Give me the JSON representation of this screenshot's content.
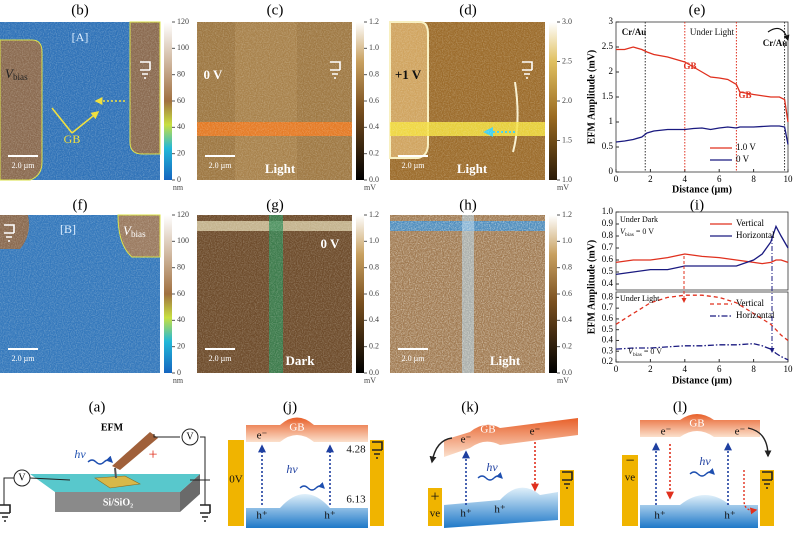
{
  "panels": {
    "b": {
      "label": "(b)",
      "region": "[A]",
      "vbias": {
        "main": "V",
        "sub": "bias"
      },
      "gb": "GB",
      "scale": "2.0 µm",
      "colorbar": {
        "ticks": [
          "0",
          "20",
          "40",
          "60",
          "80",
          "100",
          "120"
        ],
        "unit": "nm"
      }
    },
    "c": {
      "label": "(c)",
      "voltage": "0 V",
      "condition": "Light",
      "scale": "2.0 µm",
      "colorbar": {
        "ticks": [
          "0.0",
          "0.2",
          "0.4",
          "0.6",
          "0.8",
          "1.0",
          "1.2"
        ],
        "unit": "mV"
      }
    },
    "d": {
      "label": "(d)",
      "voltage": "+1 V",
      "condition": "Light",
      "scale": "2.0 µm",
      "colorbar": {
        "ticks": [
          "1.0",
          "1.5",
          "2.0",
          "2.5",
          "3.0"
        ],
        "unit": "mV"
      }
    },
    "e": {
      "label": "(e)"
    },
    "f": {
      "label": "(f)",
      "region": "[B]",
      "vbias": {
        "main": "V",
        "sub": "bias"
      },
      "scale": "2.0 µm",
      "colorbar": {
        "ticks": [
          "0",
          "20",
          "40",
          "60",
          "80",
          "100",
          "120"
        ],
        "unit": "nm"
      }
    },
    "g": {
      "label": "(g)",
      "voltage": "0 V",
      "condition": "Dark",
      "scale": "2.0 µm",
      "colorbar": {
        "ticks": [
          "0.0",
          "0.2",
          "0.4",
          "0.6",
          "0.8",
          "1.0",
          "1.2"
        ],
        "unit": "mV"
      }
    },
    "h": {
      "label": "(h)",
      "condition": "Light",
      "scale": "2.0 µm",
      "colorbar": {
        "ticks": [
          "0.0",
          "0.2",
          "0.4",
          "0.6",
          "0.8",
          "1.0",
          "1.2"
        ],
        "unit": "mV"
      }
    },
    "i": {
      "label": "(i)"
    },
    "a": {
      "label": "(a)",
      "efm": "EFM",
      "hv": "hν",
      "v1": "V",
      "v2": "V",
      "plus": "+",
      "substrate": "Si/SiO₂"
    },
    "j": {
      "label": "(j)",
      "e1": "e⁻",
      "gb": "GB",
      "top_level": "4.28",
      "hv": "hν",
      "bias": "0V",
      "bottom_level": "6.13",
      "h1": "h⁺",
      "h2": "h⁺"
    },
    "k": {
      "label": "(k)",
      "e1": "e⁻",
      "gb": "GB",
      "e2": "e⁻",
      "hv": "hν",
      "sign": "+",
      "ve": "ve",
      "h1": "h⁺",
      "h2": "h⁺"
    },
    "l": {
      "label": "(l)",
      "sign": "−",
      "ve": "ve",
      "e1": "e⁻",
      "gb": "GB",
      "e2": "e⁻",
      "hv": "hν",
      "h1": "h⁺",
      "h2": "h⁺"
    }
  },
  "chart_data": [
    {
      "type": "line",
      "ylabel": "EFM Amplitude (mV)",
      "xlabel": "Distance (µm)",
      "x": [
        0,
        0.5,
        1,
        1.5,
        1.8,
        2.2,
        3,
        4,
        4.5,
        5,
        5.5,
        6,
        6.5,
        7,
        7.2,
        8,
        9,
        9.5,
        9.8,
        10
      ],
      "series": [
        {
          "name": "1.0 V",
          "color": "#e0301e",
          "values": [
            2.45,
            2.45,
            2.5,
            2.45,
            2.4,
            2.35,
            2.3,
            2.2,
            2.1,
            2.0,
            1.9,
            1.88,
            1.85,
            1.75,
            1.6,
            1.55,
            1.5,
            1.5,
            1.45,
            1.0
          ]
        },
        {
          "name": "0 V",
          "color": "#1a1a80",
          "values": [
            0.6,
            0.62,
            0.65,
            0.7,
            0.78,
            0.82,
            0.85,
            0.85,
            0.87,
            0.88,
            0.85,
            0.88,
            0.9,
            0.88,
            0.9,
            0.9,
            0.92,
            0.92,
            0.9,
            0.55
          ]
        }
      ],
      "vlines": [
        {
          "x": 1.7,
          "color": "#333333"
        },
        {
          "x": 4,
          "color": "#e0301e"
        },
        {
          "x": 7,
          "color": "#e0301e"
        },
        {
          "x": 9.8,
          "color": "#333333"
        }
      ],
      "annotations": [
        "Cr/Au",
        "Under Light",
        "GB",
        "GB",
        "Cr/Au"
      ],
      "xlim": [
        0,
        10
      ],
      "ylim": [
        0,
        3
      ],
      "xticks": [
        0,
        2,
        4,
        6,
        8,
        10
      ],
      "yticks": [
        0,
        0.5,
        1,
        1.5,
        2,
        2.5,
        3
      ],
      "legend": "lower right"
    },
    {
      "type": "line",
      "ylabel": "EFM Amplitude (mV)",
      "x": [
        0,
        1,
        2,
        3,
        4,
        5,
        6,
        7,
        8,
        8.5,
        9,
        9.3,
        9.6,
        10
      ],
      "series": [
        {
          "name": "Vertical",
          "color": "#e0301e",
          "values": [
            0.58,
            0.6,
            0.6,
            0.62,
            0.65,
            0.63,
            0.62,
            0.6,
            0.58,
            0.57,
            0.58,
            0.6,
            0.6,
            0.58
          ]
        },
        {
          "name": "Horizontal",
          "color": "#1a1a80",
          "values": [
            0.48,
            0.5,
            0.52,
            0.52,
            0.55,
            0.55,
            0.55,
            0.55,
            0.6,
            0.65,
            0.75,
            0.88,
            0.8,
            0.7
          ]
        }
      ],
      "annotations": [
        "Under Dark"
      ],
      "vbias_note": {
        "main": "V",
        "sub": "bias",
        "rest": " = 0 V"
      },
      "xlim": [
        0,
        10
      ],
      "ylim": [
        0.35,
        1.0
      ],
      "yticks": [
        0.4,
        0.5,
        0.6,
        0.7,
        0.8,
        0.9,
        {
          "value": 1,
          "label": "1.0"
        }
      ],
      "legend": "upper right"
    },
    {
      "type": "line",
      "xlabel": "Distance (µm)",
      "x": [
        0,
        1,
        2,
        3,
        4,
        5,
        6,
        7,
        8,
        8.5,
        9,
        9.3,
        9.6,
        10
      ],
      "series": [
        {
          "name": "Vertical",
          "color": "#e0301e",
          "dash": "dashed",
          "values": [
            0.55,
            0.65,
            0.75,
            0.8,
            0.82,
            0.82,
            0.8,
            0.75,
            0.65,
            0.6,
            0.55,
            0.5,
            0.45,
            0.4
          ]
        },
        {
          "name": "Horizontal",
          "color": "#1a1a80",
          "dash": "dashdot",
          "values": [
            0.32,
            0.33,
            0.33,
            0.34,
            0.35,
            0.35,
            0.36,
            0.36,
            0.37,
            0.35,
            0.32,
            0.28,
            0.25,
            0.22
          ]
        }
      ],
      "annotations": [
        "Under Light"
      ],
      "vbias_note": {
        "main": "V",
        "sub": "bias",
        "rest": " = 0 V"
      },
      "xlim": [
        0,
        10
      ],
      "ylim": [
        0.2,
        0.85
      ],
      "xticks": [
        0,
        2,
        4,
        6,
        8,
        10
      ],
      "yticks": [
        0.2,
        0.3,
        0.4,
        0.5,
        0.6,
        0.7,
        0.8
      ],
      "legend": "upper right"
    }
  ]
}
